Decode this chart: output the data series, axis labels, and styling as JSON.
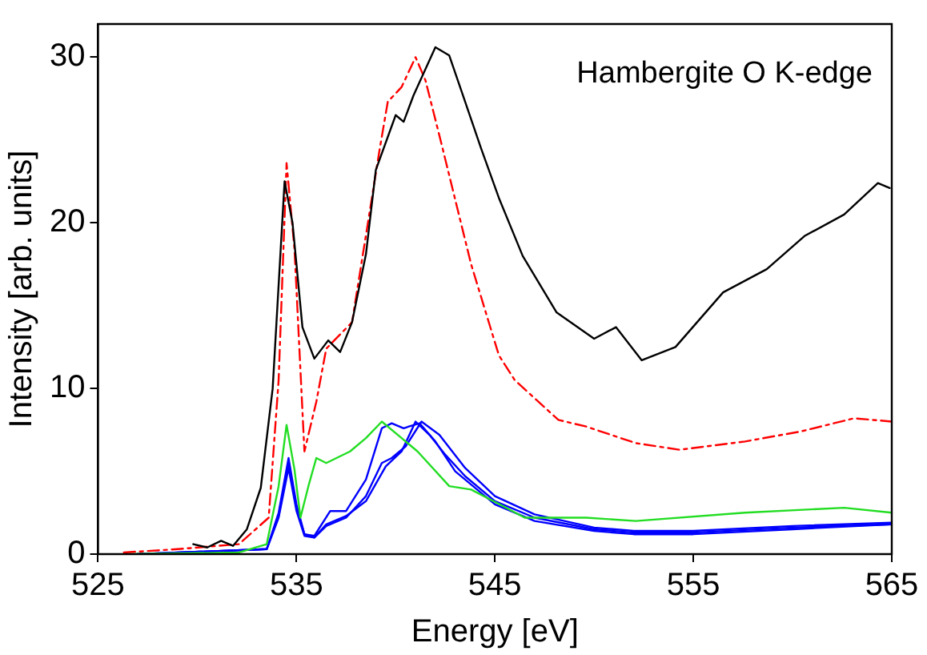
{
  "chart_data": {
    "type": "line",
    "xlabel": "Energy [eV]",
    "ylabel": "Intensity [arb. units]",
    "annotations": [
      "Hambergite O K-edge"
    ],
    "xlim": [
      525,
      565
    ],
    "xticks": [
      525,
      535,
      545,
      555,
      565
    ],
    "ylim": [
      0,
      32
    ],
    "yticks": [
      0,
      10,
      20,
      30
    ],
    "marker": "none",
    "series": [
      {
        "color": "#000000",
        "line_style": "solid",
        "x": [
          529.8,
          530.5,
          531.2,
          531.8,
          532.5,
          533.2,
          533.8,
          534.4,
          534.8,
          535.3,
          535.9,
          536.6,
          537.2,
          537.8,
          538.5,
          539.0,
          540.0,
          540.4,
          540.9,
          542.0,
          542.7,
          543.5,
          544.3,
          545.2,
          546.4,
          548.1,
          550.0,
          551.1,
          552.4,
          554.1,
          556.5,
          558.7,
          560.6,
          562.6,
          564.3,
          564.9
        ],
        "values": [
          0.6,
          0.4,
          0.8,
          0.5,
          1.5,
          4,
          10,
          22.5,
          20,
          13.7,
          11.8,
          12.9,
          12.2,
          14,
          18.1,
          23.2,
          26.5,
          26.1,
          27.7,
          30.6,
          30.1,
          27.3,
          24.5,
          21.5,
          18.0,
          14.6,
          13.0,
          13.7,
          11.7,
          12.5,
          15.8,
          17.2,
          19.2,
          20.5,
          22.4,
          22.1
        ]
      },
      {
        "color": "#ff0000",
        "line_style": "dashed",
        "x": [
          526.3,
          529,
          532.1,
          533.6,
          534.1,
          534.5,
          534.9,
          535.4,
          536.0,
          536.5,
          537.8,
          539.2,
          539.6,
          540.3,
          541.0,
          541.5,
          542.3,
          543.8,
          545.2,
          546.0,
          548.2,
          549.6,
          552.1,
          554.3,
          557.6,
          560.4,
          563.1,
          565
        ],
        "values": [
          0.1,
          0.3,
          0.6,
          2.2,
          10.5,
          23.6,
          18.4,
          6.2,
          9.2,
          12.4,
          14,
          24.5,
          27.3,
          28.2,
          30,
          28.6,
          24.8,
          17.5,
          12,
          10.5,
          8.1,
          7.7,
          6.7,
          6.3,
          6.8,
          7.4,
          8.2,
          8.0
        ]
      },
      {
        "color": "#22dd22",
        "line_style": "solid",
        "x": [
          526.5,
          532.1,
          533.5,
          534.1,
          534.5,
          534.9,
          535.2,
          535.6,
          536.0,
          536.5,
          537.7,
          538.5,
          539.3,
          540.3,
          541.1,
          542.7,
          543.8,
          545.4,
          546.5,
          549.6,
          552.1,
          557.6,
          562.6,
          565
        ],
        "values": [
          0,
          0.1,
          0.6,
          4.1,
          7.8,
          5.1,
          2.2,
          4.1,
          5.8,
          5.5,
          6.2,
          7.0,
          8.0,
          7.0,
          6.2,
          4.1,
          3.9,
          2.9,
          2.2,
          2.2,
          2.0,
          2.5,
          2.8,
          2.5
        ]
      },
      {
        "color": "#0000ff",
        "line_style": "solid",
        "x": [
          527,
          533.5,
          534.1,
          534.6,
          535.0,
          535.4,
          535.9,
          536.5,
          537.5,
          538.5,
          539.5,
          540.3,
          541.0,
          541.7,
          542.5,
          543.5,
          545,
          547,
          550,
          552,
          555,
          560,
          565
        ],
        "values": [
          0,
          0.3,
          2.5,
          5.8,
          3,
          1.2,
          1.0,
          1.8,
          2.3,
          3.2,
          5.3,
          6.2,
          8.0,
          7.2,
          6.0,
          4.7,
          3.2,
          2.2,
          1.5,
          1.3,
          1.3,
          1.6,
          1.8
        ]
      },
      {
        "color": "#0000ff",
        "line_style": "solid",
        "x": [
          527,
          533.5,
          534.1,
          534.6,
          535.0,
          535.4,
          535.9,
          536.7,
          537.5,
          538.5,
          539.3,
          539.8,
          540.4,
          541.2,
          542,
          543,
          545,
          547,
          550,
          552,
          555,
          560,
          565
        ],
        "values": [
          0,
          0.3,
          2.3,
          5.5,
          2.8,
          1.2,
          1.1,
          2.6,
          2.6,
          4.5,
          7.6,
          7.9,
          7.6,
          7.9,
          6.8,
          5.0,
          3.0,
          2.0,
          1.4,
          1.2,
          1.2,
          1.5,
          1.8
        ]
      },
      {
        "color": "#0000ff",
        "line_style": "solid",
        "x": [
          527,
          533.5,
          534.1,
          534.6,
          535.0,
          535.4,
          535.9,
          536.5,
          537.5,
          538.5,
          539.3,
          539.8,
          540.5,
          541.3,
          542.2,
          543.5,
          545,
          547,
          550,
          552,
          555,
          560,
          565
        ],
        "values": [
          0,
          0.3,
          2.2,
          5.2,
          2.6,
          1.1,
          1.0,
          1.7,
          2.2,
          3.5,
          5.5,
          5.8,
          6.5,
          8.0,
          7.2,
          5.2,
          3.5,
          2.4,
          1.6,
          1.4,
          1.4,
          1.7,
          1.9
        ]
      }
    ]
  }
}
